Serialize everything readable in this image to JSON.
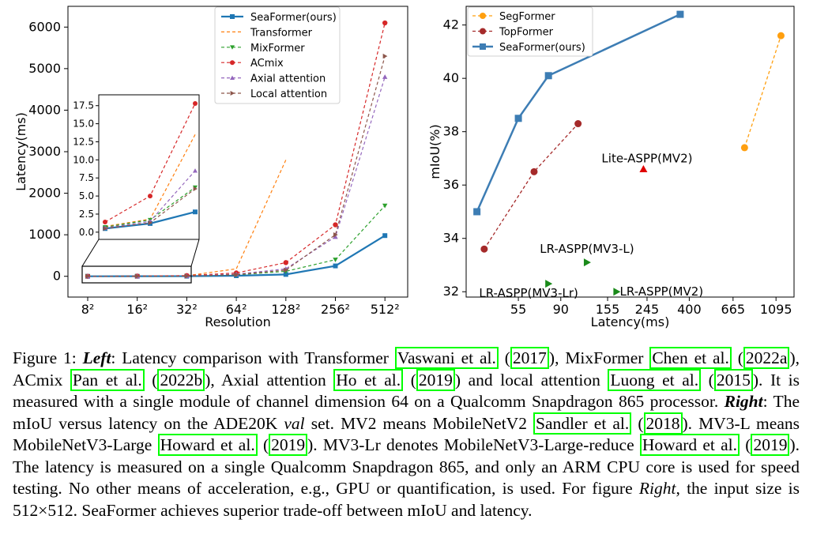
{
  "chart_data": [
    {
      "type": "line",
      "xlabel": "Resolution",
      "ylabel": "Latency(ms)",
      "categories": [
        "8²",
        "16²",
        "32²",
        "64²",
        "128²",
        "256²",
        "512²"
      ],
      "ylim": [
        -500,
        6500
      ],
      "yticks": [
        0,
        1000,
        2000,
        3000,
        4000,
        5000,
        6000
      ],
      "legend_position": "top-right",
      "series": [
        {
          "name": "SeaFormer(ours)",
          "color": "#1f77b4",
          "marker": "square",
          "dash": "",
          "width": 2.2,
          "values": [
            0.5,
            1.2,
            2.8,
            14,
            45,
            250,
            980
          ]
        },
        {
          "name": "Transformer",
          "color": "#ff7f0e",
          "marker": "none",
          "dash": "4,3",
          "width": 1.2,
          "values": [
            0.8,
            1.8,
            13.5,
            180,
            2800,
            null,
            null
          ]
        },
        {
          "name": "MixFormer",
          "color": "#2ca02c",
          "marker": "tri-down",
          "dash": "4,3",
          "width": 1.2,
          "values": [
            0.7,
            1.7,
            6.2,
            35,
            120,
            400,
            1700
          ]
        },
        {
          "name": "ACmix",
          "color": "#d62728",
          "marker": "circle",
          "dash": "4,3",
          "width": 1.2,
          "values": [
            1.4,
            5.0,
            17.8,
            80,
            330,
            1240,
            6100
          ]
        },
        {
          "name": "Axial attention",
          "color": "#9467bd",
          "marker": "tri-up",
          "dash": "4,3",
          "width": 1.2,
          "values": [
            0.6,
            1.5,
            8.5,
            50,
            180,
            950,
            4800
          ]
        },
        {
          "name": "Local attention",
          "color": "#8c564b",
          "marker": "tri-right",
          "dash": "4,3",
          "width": 1.2,
          "values": [
            0.5,
            1.3,
            6.0,
            40,
            150,
            1000,
            5300
          ]
        }
      ],
      "inset": {
        "categories_shown": 3,
        "ylim": [
          -1,
          19
        ],
        "yticks": [
          0.0,
          2.5,
          5.0,
          7.5,
          10.0,
          12.5,
          15.0,
          17.5
        ],
        "ytick_labels": [
          "0.0",
          "2.5",
          "5.0",
          "7.5",
          "10.0",
          "12.5",
          "15.0",
          "17.5"
        ]
      }
    },
    {
      "type": "scatter",
      "xlabel": "Latency(ms)",
      "ylabel": "mIoU(%)",
      "xtick_labels": [
        "55",
        "90",
        "155",
        "245",
        "400",
        "665",
        "1095"
      ],
      "xtick_values": [
        55,
        90,
        155,
        245,
        400,
        665,
        1095
      ],
      "ylim": [
        31.8,
        42.7
      ],
      "yticks": [
        32,
        34,
        36,
        38,
        40,
        42
      ],
      "x_scale": "log",
      "legend_position": "top-left",
      "series": [
        {
          "name": "SegFormer",
          "color": "#ff9f0f",
          "marker": "circle",
          "dash": "4,3",
          "points": [
            [
              760,
              37.4
            ],
            [
              1160,
              41.6
            ]
          ]
        },
        {
          "name": "TopFormer",
          "color": "#a52a2a",
          "marker": "circle",
          "dash": "4,3",
          "points": [
            [
              37,
              33.6
            ],
            [
              66,
              36.5
            ],
            [
              110,
              38.3
            ]
          ]
        },
        {
          "name": "SeaFormer(ours)",
          "color": "#3d7db4",
          "marker": "square",
          "dash": "",
          "points": [
            [
              34,
              35.0
            ],
            [
              55,
              38.5
            ],
            [
              78,
              40.1
            ],
            [
              360,
              42.4
            ]
          ]
        }
      ],
      "annotations": [
        {
          "text": "Lite-ASPP(MV2)",
          "color": "#e00000",
          "marker": "tri-up",
          "x": 235,
          "y": 36.6,
          "label_x": 245,
          "label_y": 37.0
        },
        {
          "text": "LR-ASPP(MV3-L)",
          "color": "#1a8a1a",
          "marker": "tri-right",
          "x": 122,
          "y": 33.1,
          "label_x": 122,
          "label_y": 33.6
        },
        {
          "text": "LR-ASPP(MV3-Lr)",
          "color": "#1a8a1a",
          "marker": "tri-right",
          "x": 78,
          "y": 32.3,
          "label_x": 62,
          "label_y": 31.95
        },
        {
          "text": "LR-ASPP(MV2)",
          "color": "#1a8a1a",
          "marker": "tri-right",
          "x": 172,
          "y": 32.0,
          "label_x": 290,
          "label_y": 32.0
        }
      ]
    }
  ],
  "caption": {
    "label": "Figure 1:",
    "left_word": "Left",
    "right_word": "Right",
    "right_word_2": "Right",
    "val": "val",
    "t1": ": Latency comparison with Transformer ",
    "r1": "Vaswani et al.",
    "t2": " (",
    "r2": "2017",
    "t3": "), MixFormer ",
    "r3": "Chen et al.",
    "t4": " (",
    "r4": "2022a",
    "t5": "), ACmix ",
    "r5": "Pan et al.",
    "t6": " (",
    "r6": "2022b",
    "t7": "), Axial attention ",
    "r7": "Ho et al.",
    "t8": " (",
    "r8": "2019",
    "t9": ") and local attention ",
    "r9": "Luong et al.",
    "t10": " (",
    "r10": "2015",
    "t11": "). It is measured with a single module of channel dimension 64 on a Qualcomm Snapdragon 865 processor. ",
    "t12": ": The mIoU versus latency on the ADE20K ",
    "t13": " set. MV2 means MobileNetV2 ",
    "r11": "Sandler et al.",
    "t14": " (",
    "r12": "2018",
    "t15": "). MV3-L means MobileNetV3-Large ",
    "r13": "Howard et al.",
    "t16": " (",
    "r14": "2019",
    "t17": "). MV3-Lr denotes MobileNetV3-Large-reduce ",
    "r15": "Howard et al.",
    "t18": " (",
    "r16": "2019",
    "t19": "). The latency is measured on a single Qualcomm Snapdragon 865, and only an ARM CPU core is used for speed testing. No other means of acceleration, e.g., GPU or quantification, is used. For figure ",
    "t20": ", the input size is 512×512. SeaFormer achieves superior trade-off between mIoU and latency."
  }
}
